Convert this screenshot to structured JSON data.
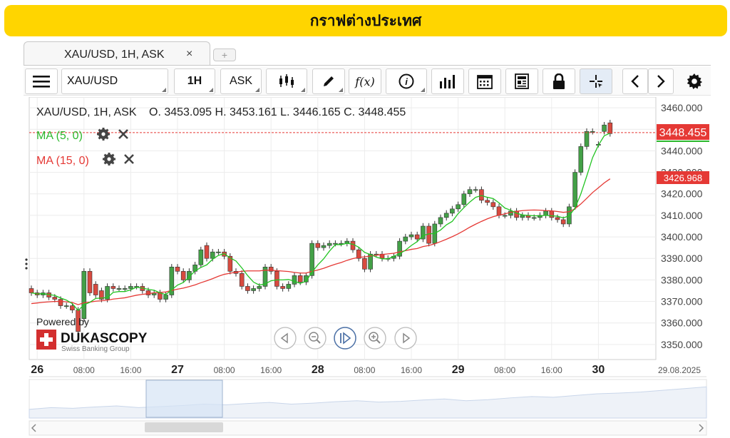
{
  "banner": {
    "title": "กราฟต่างประเทศ"
  },
  "tab": {
    "label": "XAU/USD, 1H, ASK",
    "close": "×",
    "add": "+"
  },
  "toolbar": {
    "symbol": "XAU/USD",
    "period": "1H",
    "side": "ASK",
    "fx_label": "f(x)",
    "info_label": "i"
  },
  "header": {
    "instrument": "XAU/USD, 1H, ASK",
    "ohlc": "O. 3453.095 H. 3453.161 L. 3446.165 C. 3448.455"
  },
  "indicators": [
    {
      "label": "MA (5, 0)",
      "color": "#2db82d"
    },
    {
      "label": "MA (15, 0)",
      "color": "#e53935"
    }
  ],
  "branding": {
    "powered_by": "Powered by",
    "company": "DUKASCOPY",
    "tagline": "Swiss Banking Group"
  },
  "colors": {
    "up": "#43a047",
    "down": "#d84a3f",
    "ma_fast": "#22c422",
    "ma_slow": "#e53935",
    "price_tag": "#e53935"
  },
  "chart_data": {
    "type": "candlestick",
    "ylim": [
      3343,
      3465
    ],
    "y_ticks": [
      "3460.000",
      "3450.000",
      "3440.000",
      "3430.000",
      "3420.000",
      "3410.000",
      "3400.000",
      "3390.000",
      "3380.000",
      "3370.000",
      "3360.000",
      "3350.000"
    ],
    "y_tick_values": [
      3460,
      3450,
      3440,
      3430,
      3420,
      3410,
      3400,
      3390,
      3380,
      3370,
      3360,
      3350
    ],
    "x_labels": [
      {
        "text": "26",
        "bold": true,
        "index": 1
      },
      {
        "text": "08:00",
        "bold": false,
        "index": 9
      },
      {
        "text": "16:00",
        "bold": false,
        "index": 17
      },
      {
        "text": "27",
        "bold": true,
        "index": 25
      },
      {
        "text": "08:00",
        "bold": false,
        "index": 33
      },
      {
        "text": "16:00",
        "bold": false,
        "index": 41
      },
      {
        "text": "28",
        "bold": true,
        "index": 49
      },
      {
        "text": "08:00",
        "bold": false,
        "index": 57
      },
      {
        "text": "16:00",
        "bold": false,
        "index": 65
      },
      {
        "text": "29",
        "bold": true,
        "index": 73
      },
      {
        "text": "08:00",
        "bold": false,
        "index": 81
      },
      {
        "text": "16:00",
        "bold": false,
        "index": 89
      },
      {
        "text": "30",
        "bold": true,
        "index": 97
      }
    ],
    "date_label": "29.08.2025",
    "current_price": "3448.455",
    "current_value": 3448.455,
    "ma_value": "3426.968",
    "ma_numeric": 3426.968,
    "closes": [
      3374,
      3373,
      3374,
      3372,
      3371,
      3368,
      3368,
      3366,
      3356,
      3384,
      3374,
      3373,
      3371,
      3377,
      3376,
      3376,
      3376,
      3377,
      3377,
      3375,
      3373,
      3374,
      3371,
      3373,
      3386,
      3384,
      3380,
      3384,
      3387,
      3394,
      3390,
      3393,
      3393,
      3391,
      3384,
      3383,
      3377,
      3375,
      3376,
      3377,
      3386,
      3384,
      3377,
      3376,
      3378,
      3382,
      3379,
      3382,
      3397,
      3395,
      3396,
      3397,
      3397,
      3397,
      3398,
      3394,
      3390,
      3385,
      3392,
      3392,
      3390,
      3390,
      3391,
      3398,
      3400,
      3401,
      3399,
      3405,
      3397,
      3406,
      3409,
      3411,
      3413,
      3415,
      3420,
      3422,
      3422,
      3417,
      3416,
      3414,
      3410,
      3410,
      3412,
      3409,
      3410,
      3409,
      3409,
      3410,
      3412,
      3409,
      3408,
      3406,
      3414,
      3430,
      3442,
      3449,
      3449,
      3443,
      3452,
      3448
    ],
    "opens": [
      3376,
      3374,
      3373,
      3374,
      3372,
      3371,
      3368,
      3368,
      3366,
      3362,
      3384,
      3378,
      3375,
      3371,
      3377,
      3376,
      3376,
      3376,
      3377,
      3377,
      3375,
      3373,
      3374,
      3371,
      3373,
      3386,
      3384,
      3380,
      3384,
      3387,
      3396,
      3390,
      3393,
      3393,
      3391,
      3384,
      3383,
      3377,
      3375,
      3376,
      3377,
      3386,
      3384,
      3377,
      3376,
      3378,
      3382,
      3379,
      3382,
      3397,
      3395,
      3396,
      3397,
      3397,
      3397,
      3398,
      3394,
      3390,
      3385,
      3392,
      3392,
      3390,
      3390,
      3391,
      3398,
      3400,
      3401,
      3399,
      3405,
      3397,
      3406,
      3409,
      3411,
      3413,
      3415,
      3420,
      3422,
      3422,
      3417,
      3416,
      3414,
      3410,
      3410,
      3412,
      3409,
      3410,
      3409,
      3409,
      3410,
      3412,
      3409,
      3408,
      3406,
      3414,
      3430,
      3442,
      3449,
      3443,
      3449,
      3453
    ],
    "ma_fast": [
      3374,
      3373.5,
      3373.6,
      3373.2,
      3372.8,
      3371.6,
      3370.6,
      3369,
      3365.8,
      3368.4,
      3369.6,
      3371.4,
      3371.6,
      3371.8,
      3374.2,
      3374.6,
      3374.6,
      3375.4,
      3376.6,
      3376.2,
      3375.6,
      3375.2,
      3374,
      3373.2,
      3375.4,
      3377.6,
      3378.8,
      3381.4,
      3384.2,
      3385.8,
      3387,
      3389.6,
      3391.4,
      3392.2,
      3390.2,
      3388.8,
      3385.6,
      3382,
      3379,
      3377.6,
      3378.2,
      3379.6,
      3380,
      3380,
      3380.2,
      3379.4,
      3378.4,
      3379.4,
      3383.6,
      3387,
      3389.8,
      3393.4,
      3396.4,
      3396.4,
      3397,
      3396.6,
      3395.2,
      3392.8,
      3391.8,
      3390.6,
      3389.8,
      3389.8,
      3391,
      3392.2,
      3393.8,
      3396,
      3397.8,
      3400.6,
      3401.4,
      3401.6,
      3403.2,
      3405.6,
      3407.2,
      3410.8,
      3413.6,
      3416.2,
      3418.4,
      3419.2,
      3418.4,
      3417.8,
      3415.8,
      3413.4,
      3412.4,
      3411,
      3410.2,
      3410,
      3409.8,
      3409.8,
      3410,
      3409.8,
      3409.6,
      3408.8,
      3409.8,
      3413.4,
      3420,
      3428.2,
      3436.8,
      3442.6,
      3447,
      3448.2
    ],
    "ma_slow": [
      3369,
      3369.3,
      3369.6,
      3369.8,
      3370,
      3370,
      3369.8,
      3369.5,
      3368.5,
      3369.4,
      3369.7,
      3370.1,
      3370.3,
      3370.6,
      3371.1,
      3371.4,
      3371.7,
      3372.3,
      3372.9,
      3373.3,
      3373.6,
      3374,
      3374.2,
      3374.4,
      3375.1,
      3375.7,
      3376.2,
      3376.9,
      3377.7,
      3378.7,
      3379.6,
      3380.6,
      3381.7,
      3382.6,
      3383.1,
      3383.6,
      3384,
      3384.2,
      3384.2,
      3384.2,
      3384.5,
      3384.5,
      3384.3,
      3384.1,
      3383.9,
      3383.5,
      3383.2,
      3383.2,
      3384,
      3384.6,
      3385.4,
      3386.4,
      3387.3,
      3388.1,
      3389.1,
      3389.9,
      3390.5,
      3390.7,
      3391.1,
      3391.5,
      3391.8,
      3392.1,
      3392.4,
      3393,
      3393.6,
      3394.2,
      3394.6,
      3395.5,
      3396,
      3396.8,
      3397.8,
      3398.9,
      3400.1,
      3401.4,
      3402.9,
      3404.5,
      3405.9,
      3407.2,
      3408.4,
      3409.4,
      3410.1,
      3410.7,
      3411.4,
      3411.9,
      3412.2,
      3412.4,
      3412.5,
      3412.4,
      3412.2,
      3412.1,
      3411.8,
      3411.4,
      3411.7,
      3413.1,
      3415.3,
      3417.9,
      3420.6,
      3422.8,
      3425.1,
      3426.97
    ],
    "navigator": [
      0.25,
      0.3,
      0.28,
      0.32,
      0.35,
      0.3,
      0.33,
      0.36,
      0.4,
      0.38,
      0.42,
      0.45,
      0.4,
      0.43,
      0.47,
      0.5,
      0.46,
      0.48,
      0.52,
      0.55,
      0.5,
      0.53,
      0.58,
      0.62,
      0.6,
      0.65,
      0.7,
      0.72,
      0.75,
      0.8,
      0.85,
      0.9
    ]
  }
}
